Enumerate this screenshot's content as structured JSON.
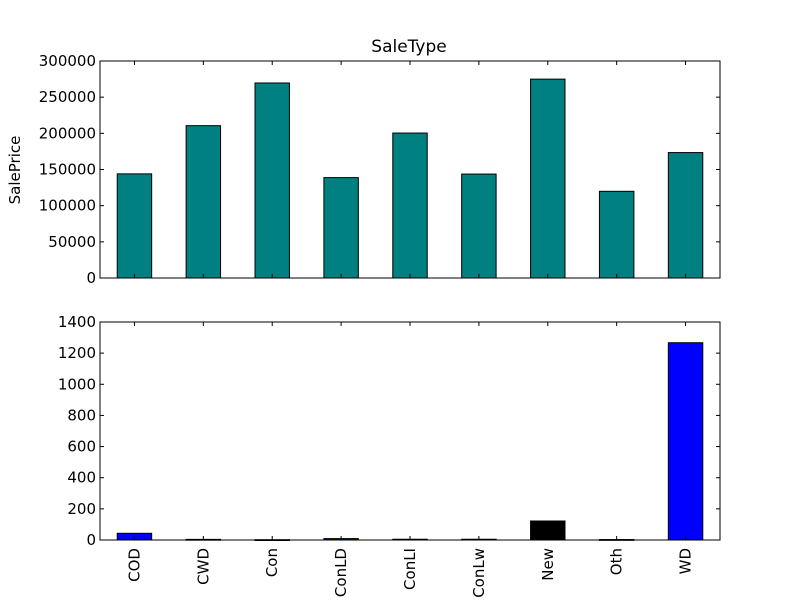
{
  "chart_data": [
    {
      "type": "bar",
      "title": "SaleType",
      "xlabel": "",
      "ylabel": "SalePrice",
      "categories": [
        "COD",
        "CWD",
        "Con",
        "ConLD",
        "ConLI",
        "ConLw",
        "New",
        "Oth",
        "WD"
      ],
      "values": [
        143973,
        210600,
        269600,
        138781,
        200390,
        143700,
        274945,
        119850,
        173402
      ],
      "ylim": [
        0,
        300000
      ],
      "yticks": [
        "0",
        "50000",
        "100000",
        "150000",
        "200000",
        "250000",
        "300000"
      ],
      "bar_color": "#008080",
      "show_xtick_labels": false,
      "grid": false
    },
    {
      "type": "bar",
      "title": "",
      "xlabel": "",
      "ylabel": "",
      "categories": [
        "COD",
        "CWD",
        "Con",
        "ConLD",
        "ConLI",
        "ConLw",
        "New",
        "Oth",
        "WD"
      ],
      "values": [
        43,
        4,
        2,
        9,
        5,
        5,
        122,
        3,
        1267
      ],
      "bar_colors": [
        "#0000ff",
        "#0000ff",
        "#0000ff",
        "#0000ff",
        "#0000ff",
        "#0000ff",
        "#000000",
        "#0000ff",
        "#0000ff"
      ],
      "ylim": [
        0,
        1400
      ],
      "yticks": [
        "0",
        "200",
        "400",
        "600",
        "800",
        "1000",
        "1200",
        "1400"
      ],
      "show_xtick_labels": true,
      "grid": false
    }
  ]
}
